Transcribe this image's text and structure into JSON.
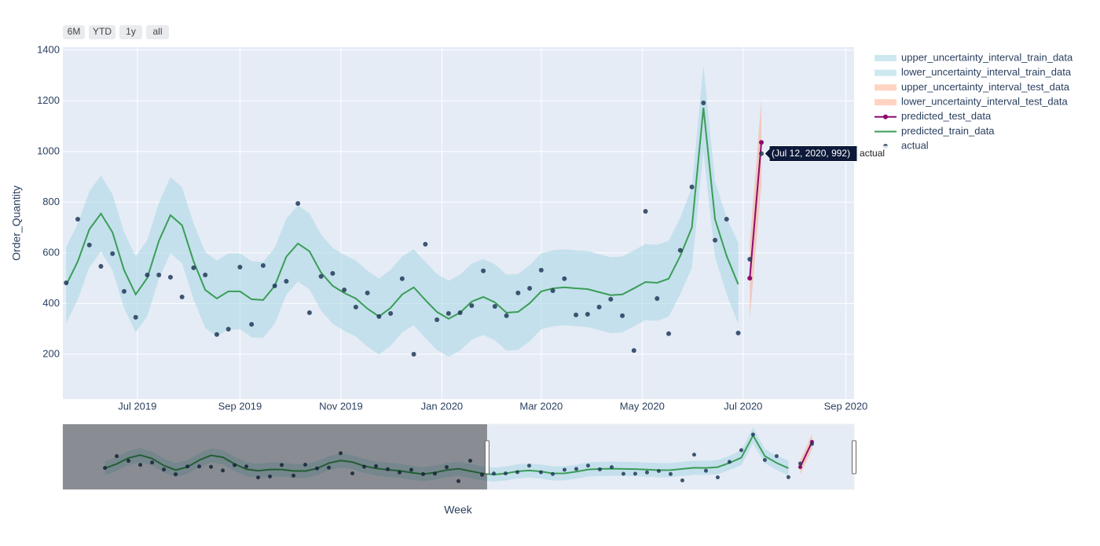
{
  "chart_data": {
    "type": "line",
    "buttons": [
      "6M",
      "YTD",
      "1y",
      "all"
    ],
    "y_label": "Order_Quantity",
    "x_label": "Week",
    "x": [
      "2019-05-19",
      "2019-05-26",
      "2019-06-02",
      "2019-06-09",
      "2019-06-16",
      "2019-06-23",
      "2019-06-30",
      "2019-07-07",
      "2019-07-14",
      "2019-07-21",
      "2019-07-28",
      "2019-08-04",
      "2019-08-11",
      "2019-08-18",
      "2019-08-25",
      "2019-09-01",
      "2019-09-08",
      "2019-09-15",
      "2019-09-22",
      "2019-09-29",
      "2019-10-06",
      "2019-10-13",
      "2019-10-20",
      "2019-10-27",
      "2019-11-03",
      "2019-11-10",
      "2019-11-17",
      "2019-11-24",
      "2019-12-01",
      "2019-12-08",
      "2019-12-15",
      "2019-12-22",
      "2019-12-29",
      "2020-01-05",
      "2020-01-12",
      "2020-01-19",
      "2020-01-26",
      "2020-02-02",
      "2020-02-09",
      "2020-02-16",
      "2020-02-23",
      "2020-03-01",
      "2020-03-08",
      "2020-03-15",
      "2020-03-22",
      "2020-03-29",
      "2020-04-05",
      "2020-04-12",
      "2020-04-19",
      "2020-04-26",
      "2020-05-03",
      "2020-05-10",
      "2020-05-17",
      "2020-05-24",
      "2020-05-31",
      "2020-06-07",
      "2020-06-14",
      "2020-06-21",
      "2020-06-28",
      "2020-07-05",
      "2020-07-12"
    ],
    "series": [
      {
        "name": "upper_uncertainty_interval_train_data",
        "mode": "lines",
        "fill": "none",
        "color": "rgba(173,216,230,0.6)",
        "values": [
          623,
          716,
          843,
          905,
          831,
          682,
          586,
          651,
          797,
          899,
          859,
          716,
          604,
          570,
          598,
          598,
          567,
          564,
          620,
          735,
          787,
          756,
          672,
          620,
          592,
          570,
          530,
          499,
          533,
          586,
          614,
          564,
          517,
          490,
          514,
          558,
          576,
          555,
          514,
          517,
          551,
          598,
          610,
          614,
          610,
          607,
          595,
          583,
          586,
          610,
          635,
          632,
          648,
          738,
          860,
          1340,
          883,
          738,
          640,
          null,
          null
        ]
      },
      {
        "name": "lower_uncertainty_interval_train_data",
        "mode": "lines",
        "fill": "tonexty",
        "color": "rgba(173,216,230,0.6)",
        "values": [
          323,
          416,
          543,
          605,
          531,
          382,
          286,
          351,
          497,
          599,
          559,
          416,
          304,
          270,
          298,
          298,
          267,
          264,
          320,
          435,
          487,
          456,
          372,
          320,
          292,
          270,
          230,
          199,
          233,
          286,
          314,
          264,
          217,
          190,
          214,
          258,
          276,
          255,
          214,
          217,
          251,
          298,
          310,
          314,
          310,
          307,
          295,
          283,
          286,
          310,
          335,
          332,
          348,
          438,
          540,
          1000,
          583,
          438,
          320,
          null,
          null
        ]
      },
      {
        "name": "upper_uncertainty_interval_test_data",
        "mode": "lines",
        "fill": "none",
        "color": "rgba(255,160,122,0.45)",
        "values": [
          null,
          null,
          null,
          null,
          null,
          null,
          null,
          null,
          null,
          null,
          null,
          null,
          null,
          null,
          null,
          null,
          null,
          null,
          null,
          null,
          null,
          null,
          null,
          null,
          null,
          null,
          null,
          null,
          null,
          null,
          null,
          null,
          null,
          null,
          null,
          null,
          null,
          null,
          null,
          null,
          null,
          null,
          null,
          null,
          null,
          null,
          null,
          null,
          null,
          null,
          null,
          null,
          null,
          null,
          null,
          null,
          null,
          null,
          null,
          640,
          1205
        ]
      },
      {
        "name": "lower_uncertainty_interval_test_data",
        "mode": "lines",
        "fill": "tonexty",
        "color": "rgba(255,160,122,0.45)",
        "values": [
          null,
          null,
          null,
          null,
          null,
          null,
          null,
          null,
          null,
          null,
          null,
          null,
          null,
          null,
          null,
          null,
          null,
          null,
          null,
          null,
          null,
          null,
          null,
          null,
          null,
          null,
          null,
          null,
          null,
          null,
          null,
          null,
          null,
          null,
          null,
          null,
          null,
          null,
          null,
          null,
          null,
          null,
          null,
          null,
          null,
          null,
          null,
          null,
          null,
          null,
          null,
          null,
          null,
          null,
          null,
          null,
          null,
          null,
          null,
          340,
          870
        ]
      },
      {
        "name": "predicted_test_data",
        "mode": "lines+markers",
        "fill": "none",
        "color": "#8e0a6e",
        "values": [
          null,
          null,
          null,
          null,
          null,
          null,
          null,
          null,
          null,
          null,
          null,
          null,
          null,
          null,
          null,
          null,
          null,
          null,
          null,
          null,
          null,
          null,
          null,
          null,
          null,
          null,
          null,
          null,
          null,
          null,
          null,
          null,
          null,
          null,
          null,
          null,
          null,
          null,
          null,
          null,
          null,
          null,
          null,
          null,
          null,
          null,
          null,
          null,
          null,
          null,
          null,
          null,
          null,
          null,
          null,
          null,
          null,
          null,
          null,
          500,
          1036
        ]
      },
      {
        "name": "predicted_train_data",
        "mode": "lines",
        "fill": "none",
        "color": "#3a9d57",
        "values": [
          473,
          566,
          693,
          755,
          681,
          532,
          436,
          501,
          647,
          749,
          709,
          566,
          454,
          420,
          448,
          448,
          417,
          414,
          470,
          585,
          637,
          606,
          522,
          470,
          442,
          420,
          380,
          349,
          383,
          436,
          464,
          414,
          367,
          340,
          364,
          408,
          426,
          405,
          364,
          367,
          401,
          448,
          460,
          464,
          460,
          457,
          445,
          433,
          436,
          460,
          485,
          482,
          498,
          588,
          700,
          1173,
          733,
          588,
          476,
          null,
          null
        ]
      },
      {
        "name": "actual",
        "mode": "markers",
        "fill": "none",
        "color": "#22395b",
        "values": [
          482,
          733,
          631,
          547,
          597,
          448,
          346,
          513,
          513,
          504,
          426,
          541,
          513,
          278,
          299,
          544,
          318,
          550,
          470,
          488,
          795,
          364,
          507,
          519,
          454,
          386,
          442,
          349,
          361,
          498,
          200,
          634,
          336,
          361,
          364,
          392,
          529,
          389,
          352,
          442,
          460,
          532,
          451,
          498,
          355,
          358,
          386,
          417,
          352,
          215,
          764,
          420,
          281,
          610,
          860,
          1192,
          650,
          733,
          284,
          575,
          992
        ]
      }
    ],
    "xlim": [
      "2019-05-17",
      "2020-09-06"
    ],
    "xticks": [
      {
        "value": "2019-07-01",
        "label": "Jul 2019"
      },
      {
        "value": "2019-09-01",
        "label": "Sep 2019"
      },
      {
        "value": "2019-11-01",
        "label": "Nov 2019"
      },
      {
        "value": "2020-01-01",
        "label": "Jan 2020"
      },
      {
        "value": "2020-03-01",
        "label": "Mar 2020"
      },
      {
        "value": "2020-05-01",
        "label": "May 2020"
      },
      {
        "value": "2020-07-01",
        "label": "Jul 2020"
      },
      {
        "value": "2020-09-01",
        "label": "Sep 2020"
      }
    ],
    "ylim": [
      23,
      1412
    ],
    "yticks": [
      200,
      400,
      600,
      800,
      1000,
      1200,
      1400
    ],
    "grid": true,
    "legend": "right",
    "rangeslider": {
      "range": [
        "2019-04-24",
        "2020-08-06"
      ],
      "selected": [
        "2020-01-01",
        "2020-08-06"
      ]
    },
    "hover": {
      "label": "(Jul 12, 2020, 992)",
      "series": 6,
      "index": 60
    }
  }
}
